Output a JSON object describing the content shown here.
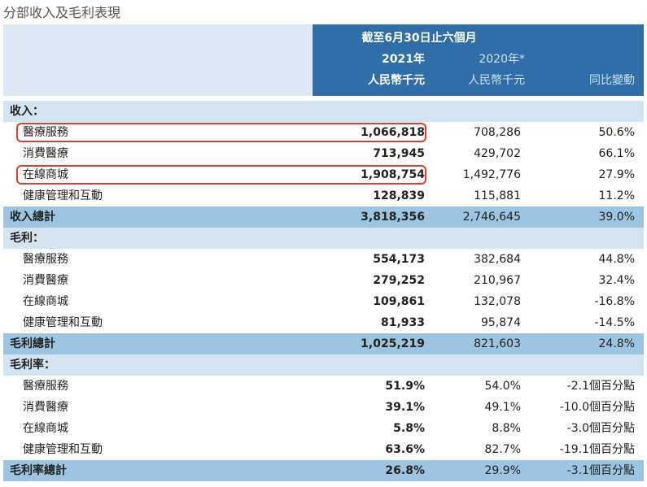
{
  "title": "分部收入及毛利表現",
  "header": {
    "period": "截至6月30日止六個月",
    "col1_year": "2021年",
    "col1_unit": "人民幣千元",
    "col2_year": "2020年*",
    "col2_unit": "人民幣千元",
    "col3_label": "同比變動"
  },
  "sections": [
    {
      "heading": "收入：",
      "rows": [
        {
          "label": "醫療服務",
          "values": [
            "1,066,818",
            "708,286",
            "50.6%"
          ],
          "highlighted": true
        },
        {
          "label": "消費醫療",
          "values": [
            "713,945",
            "429,702",
            "66.1%"
          ]
        },
        {
          "label": "在線商城",
          "values": [
            "1,908,754",
            "1,492,776",
            "27.9%"
          ],
          "highlighted": true
        },
        {
          "label": "健康管理和互動",
          "values": [
            "128,839",
            "115,881",
            "11.2%"
          ]
        }
      ],
      "total": {
        "label": "收入總計",
        "values": [
          "3,818,356",
          "2,746,645",
          "39.0%"
        ]
      }
    },
    {
      "heading": "毛利：",
      "rows": [
        {
          "label": "醫療服務",
          "values": [
            "554,173",
            "382,684",
            "44.8%"
          ]
        },
        {
          "label": "消費醫療",
          "values": [
            "279,252",
            "210,967",
            "32.4%"
          ]
        },
        {
          "label": "在線商城",
          "values": [
            "109,861",
            "132,078",
            "-16.8%"
          ]
        },
        {
          "label": "健康管理和互動",
          "values": [
            "81,933",
            "95,874",
            "-14.5%"
          ]
        }
      ],
      "total": {
        "label": "毛利總計",
        "values": [
          "1,025,219",
          "821,603",
          "24.8%"
        ]
      }
    },
    {
      "heading": "毛利率：",
      "rows": [
        {
          "label": "醫療服務",
          "values": [
            "51.9%",
            "54.0%",
            "-2.1個百分點"
          ]
        },
        {
          "label": "消費醫療",
          "values": [
            "39.1%",
            "49.1%",
            "-10.0個百分點"
          ]
        },
        {
          "label": "在線商城",
          "values": [
            "5.8%",
            "8.8%",
            "-3.0個百分點"
          ]
        },
        {
          "label": "健康管理和互動",
          "values": [
            "63.6%",
            "82.7%",
            "-19.1個百分點"
          ]
        }
      ],
      "total": {
        "label": "毛利率總計",
        "values": [
          "26.8%",
          "29.9%",
          "-3.1個百分點"
        ]
      }
    }
  ]
}
